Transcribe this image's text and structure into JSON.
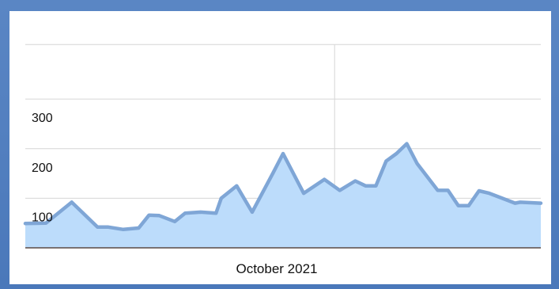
{
  "colors": {
    "frame": "#4f7fc0",
    "panel": "#ffffff",
    "area_fill": "#bcdcfb",
    "line": "#7fa6d6",
    "grid": "#d6d6d6",
    "baseline": "#5a4a45"
  },
  "chart_data": {
    "type": "area",
    "title": "",
    "xlabel": "October 2021",
    "ylabel": "",
    "xlim": [
      0,
      100
    ],
    "ylim": [
      0,
      420
    ],
    "grid": true,
    "legend": "none",
    "y_ticks": [
      100,
      200,
      300
    ],
    "y_gridlines": [
      100,
      200,
      300,
      410
    ],
    "x_marker": 60,
    "series": [
      {
        "x": [
          0,
          4,
          9,
          11,
          14,
          16,
          19,
          22,
          24,
          26,
          29,
          31,
          34,
          37,
          38,
          41,
          44,
          48,
          50,
          54,
          58,
          61,
          64,
          66,
          68,
          70,
          72,
          74,
          76,
          80,
          82,
          84,
          86,
          88,
          90,
          95,
          96,
          101
        ],
        "values": [
          49,
          50,
          92,
          72,
          42,
          42,
          37,
          40,
          66,
          65,
          53,
          70,
          72,
          70,
          100,
          125,
          72,
          150,
          190,
          110,
          138,
          116,
          135,
          125,
          125,
          175,
          190,
          210,
          170,
          116,
          116,
          85,
          85,
          115,
          110,
          90,
          92,
          90
        ]
      }
    ]
  }
}
